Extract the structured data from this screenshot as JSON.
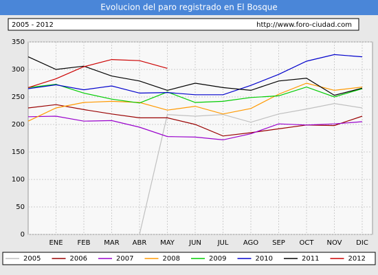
{
  "chart_data": {
    "type": "line",
    "title": "Evolucion del paro registrado en El Bosque",
    "subtitle": "2005 - 2012",
    "source": "http://www.foro-ciudad.com",
    "categories": [
      null,
      "ENE",
      "FEB",
      "MAR",
      "ABR",
      "MAY",
      "JUN",
      "JUL",
      "AGO",
      "SEP",
      "OCT",
      "NOV",
      "DIC"
    ],
    "ylim": [
      0,
      350
    ],
    "yticks": [
      0,
      50,
      100,
      150,
      200,
      250,
      300,
      350
    ],
    "grid": true,
    "series": [
      {
        "name": "2005",
        "color": "#c0c0c0",
        "values": [
          null,
          null,
          null,
          null,
          0,
          218,
          215,
          218,
          204,
          219,
          228,
          238,
          230
        ]
      },
      {
        "name": "2006",
        "color": "#990000",
        "values": [
          230,
          236,
          227,
          219,
          212,
          212,
          200,
          179,
          185,
          192,
          199,
          198,
          215
        ]
      },
      {
        "name": "2007",
        "color": "#9900cc",
        "values": [
          214,
          215,
          206,
          207,
          195,
          178,
          177,
          172,
          183,
          201,
          199,
          201,
          205
        ]
      },
      {
        "name": "2008",
        "color": "#ff9900",
        "values": [
          206,
          230,
          240,
          242,
          240,
          226,
          233,
          219,
          229,
          255,
          275,
          262,
          268
        ]
      },
      {
        "name": "2009",
        "color": "#00cc00",
        "values": [
          267,
          273,
          257,
          246,
          239,
          259,
          240,
          242,
          249,
          252,
          268,
          250,
          265
        ]
      },
      {
        "name": "2010",
        "color": "#0000cc",
        "values": [
          265,
          272,
          263,
          270,
          257,
          258,
          254,
          254,
          271,
          291,
          315,
          327,
          323
        ]
      },
      {
        "name": "2011",
        "color": "#000000",
        "values": [
          323,
          300,
          306,
          288,
          279,
          262,
          275,
          267,
          262,
          279,
          284,
          253,
          266
        ]
      },
      {
        "name": "2012",
        "color": "#cc0000",
        "values": [
          267,
          283,
          305,
          318,
          316,
          302,
          null,
          null,
          null,
          null,
          null,
          null,
          null
        ]
      }
    ]
  }
}
